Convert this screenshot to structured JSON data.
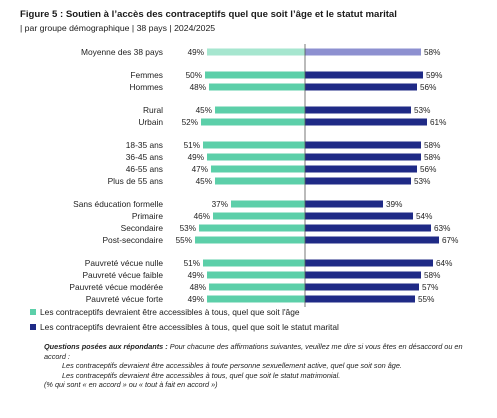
{
  "header": {
    "title": "Figure 5 : Soutien à l’accès des contraceptifs quel que soit l’âge et le statut marital",
    "subtitle": "| par groupe démographique | 38 pays | 2024/2025"
  },
  "colors": {
    "series_age": "#5ccfa9",
    "series_age_average": "#a6e6cf",
    "series_marital": "#1f2a86",
    "series_marital_average": "#8d90d0",
    "axis_line": "#555555"
  },
  "chart_data": {
    "type": "bar",
    "orientation": "diverging-horizontal",
    "categories": [
      "Moyenne des 38 pays",
      "Femmes",
      "Hommes",
      "Rural",
      "Urbain",
      "18-35 ans",
      "36-45 ans",
      "46-55 ans",
      "Plus de 55 ans",
      "Sans éducation formelle",
      "Primaire",
      "Secondaire",
      "Post-secondaire",
      "Pauvreté vécue nulle",
      "Pauvreté vécue faible",
      "Pauvreté vécue modérée",
      "Pauvreté vécue forte"
    ],
    "groups": [
      [
        0
      ],
      [
        1,
        2
      ],
      [
        3,
        4
      ],
      [
        5,
        6,
        7,
        8
      ],
      [
        9,
        10,
        11,
        12
      ],
      [
        13,
        14,
        15,
        16
      ]
    ],
    "series": [
      {
        "name": "Les contraceptifs devraient être accessibles à tous, quel que soit l'âge",
        "values": [
          49,
          50,
          48,
          45,
          52,
          51,
          49,
          47,
          45,
          37,
          46,
          53,
          55,
          51,
          49,
          48,
          49
        ],
        "labels": [
          "49%",
          "50%",
          "48%",
          "45%",
          "52%",
          "51%",
          "49%",
          "47%",
          "45%",
          "37%",
          "46%",
          "53%",
          "55%",
          "51%",
          "49%",
          "48%",
          "49%"
        ]
      },
      {
        "name": "Les contraceptifs devraient être accessibles à tous, quel que soit le statut marital",
        "values": [
          58,
          59,
          56,
          53,
          61,
          58,
          58,
          56,
          53,
          39,
          54,
          63,
          67,
          64,
          58,
          57,
          55
        ],
        "labels": [
          "58%",
          "59%",
          "56%",
          "53%",
          "61%",
          "58%",
          "58%",
          "56%",
          "53%",
          "39%",
          "54%",
          "63%",
          "67%",
          "64%",
          "58%",
          "57%",
          "55%"
        ]
      }
    ],
    "xlim": [
      0,
      100
    ],
    "grid": false,
    "legend_position": "bottom"
  },
  "notes": {
    "question_label": "Questions posées aux répondants :",
    "question_intro": " Pour chacune des affirmations suivantes, veuillez me dire si vous êtes en désaccord ou en accord :",
    "statement_1": "Les contraceptifs devraient être accessibles à toute personne sexuellement active, quel que soit son âge.",
    "statement_2": "Les contraceptifs devraient être accessibles à tous, quel que soit le statut matrimonial.",
    "footnote": "(% qui sont « en accord » ou « tout à fait en accord »)"
  }
}
